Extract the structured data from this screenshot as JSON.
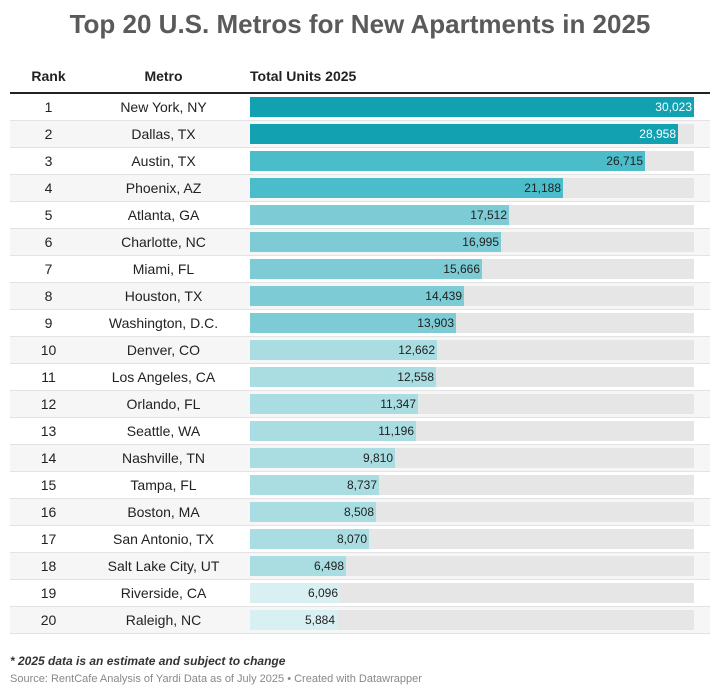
{
  "chart_data": {
    "type": "table",
    "title": "Top 20 U.S. Metros for New Apartments in 2025",
    "columns": [
      "Rank",
      "Metro",
      "Total Units 2025"
    ],
    "xlim": [
      0,
      30023
    ],
    "rows": [
      {
        "rank": "1",
        "metro": "New York, NY",
        "units": 30023,
        "label": "30,023"
      },
      {
        "rank": "2",
        "metro": "Dallas, TX",
        "units": 28958,
        "label": "28,958"
      },
      {
        "rank": "3",
        "metro": "Austin, TX",
        "units": 26715,
        "label": "26,715"
      },
      {
        "rank": "4",
        "metro": "Phoenix, AZ",
        "units": 21188,
        "label": "21,188"
      },
      {
        "rank": "5",
        "metro": "Atlanta, GA",
        "units": 17512,
        "label": "17,512"
      },
      {
        "rank": "6",
        "metro": "Charlotte, NC",
        "units": 16995,
        "label": "16,995"
      },
      {
        "rank": "7",
        "metro": "Miami, FL",
        "units": 15666,
        "label": "15,666"
      },
      {
        "rank": "8",
        "metro": "Houston, TX",
        "units": 14439,
        "label": "14,439"
      },
      {
        "rank": "9",
        "metro": "Washington, D.C.",
        "units": 13903,
        "label": "13,903"
      },
      {
        "rank": "10",
        "metro": "Denver, CO",
        "units": 12662,
        "label": "12,662"
      },
      {
        "rank": "11",
        "metro": "Los Angeles, CA",
        "units": 12558,
        "label": "12,558"
      },
      {
        "rank": "12",
        "metro": "Orlando, FL",
        "units": 11347,
        "label": "11,347"
      },
      {
        "rank": "13",
        "metro": "Seattle, WA",
        "units": 11196,
        "label": "11,196"
      },
      {
        "rank": "14",
        "metro": "Nashville, TN",
        "units": 9810,
        "label": "9,810"
      },
      {
        "rank": "15",
        "metro": "Tampa, FL",
        "units": 8737,
        "label": "8,737"
      },
      {
        "rank": "16",
        "metro": "Boston, MA",
        "units": 8508,
        "label": "8,508"
      },
      {
        "rank": "17",
        "metro": "San Antonio, TX",
        "units": 8070,
        "label": "8,070"
      },
      {
        "rank": "18",
        "metro": "Salt Lake City, UT",
        "units": 6498,
        "label": "6,498"
      },
      {
        "rank": "19",
        "metro": "Riverside, CA",
        "units": 6096,
        "label": "6,096"
      },
      {
        "rank": "20",
        "metro": "Raleigh, NC",
        "units": 5884,
        "label": "5,884"
      }
    ],
    "color_steps": [
      {
        "min": 28000,
        "color": "#12a1b1",
        "text": "#ffffff"
      },
      {
        "min": 20000,
        "color": "#4bbcc9",
        "text": "#222222"
      },
      {
        "min": 13000,
        "color": "#7ccbd5",
        "text": "#222222"
      },
      {
        "min": 6400,
        "color": "#a9dde2",
        "text": "#222222"
      },
      {
        "min": 0,
        "color": "#d8f0f2",
        "text": "#222222"
      }
    ]
  },
  "footnote": "* 2025 data is an estimate and subject to change",
  "source": "Source: RentCafe Analysis of Yardi Data as of July 2025 • Created with Datawrapper"
}
